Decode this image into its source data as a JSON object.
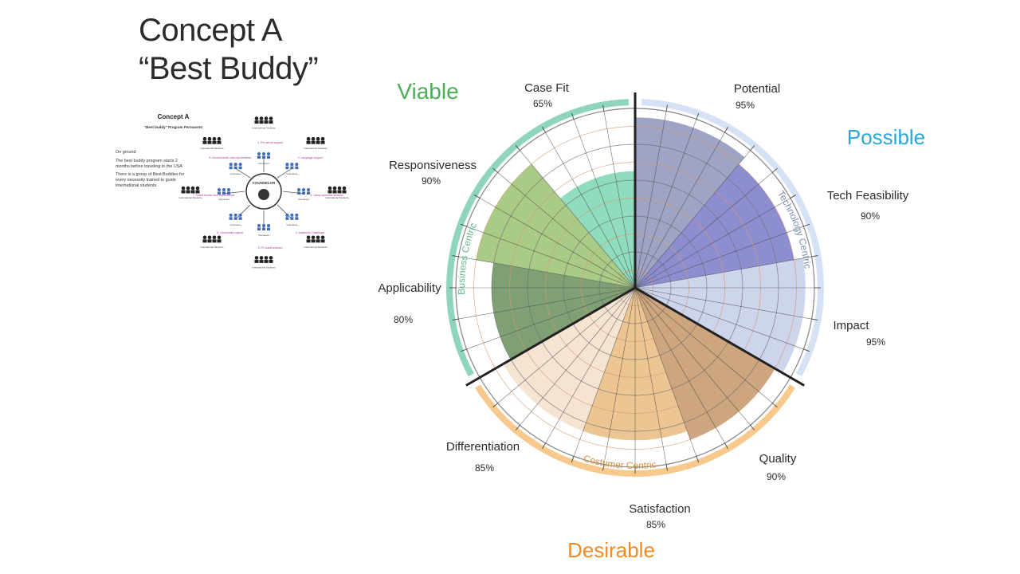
{
  "slide": {
    "title_line1": "Concept A",
    "title_line2": "“Best Buddy”"
  },
  "thumbnail": {
    "title": "Concept A",
    "subtitle": "\"Best buddy\" Program Permanent",
    "body": [
      "On ground",
      "The best buddy program starts 2 months before traveling to the USA",
      "There is a group of Best Buddies for every necessity trained to guide international students."
    ],
    "center_label": "COUNSELOR",
    "nodes": [
      {
        "group": "International Students",
        "step": "1. Pre-arrival support",
        "helper": "Volunteers"
      },
      {
        "group": "International Students",
        "step": "2. Language support",
        "helper": "Volunteers"
      },
      {
        "group": "International Students",
        "step": "3. Living expenses advisors",
        "helper": "Volunteers"
      },
      {
        "group": "International Students",
        "step": "4. Academic Challenges",
        "helper": "Volunteers"
      },
      {
        "group": "International Students",
        "step": "5. Fit social advisors",
        "helper": "Volunteers"
      },
      {
        "group": "International Students",
        "step": "6. Community support",
        "helper": "Volunteers"
      },
      {
        "group": "International Students",
        "step": "7. Social events/ visa requirements",
        "helper": "Volunteers"
      },
      {
        "group": "International Students",
        "step": "8. Social events/ visa requirements",
        "helper": "Volunteers"
      }
    ]
  },
  "colors": {
    "viable": "#4cae57",
    "possible": "#2aa8d8",
    "desirable": "#f08a24",
    "business_band": "#8fd5bb",
    "technology_band": "#d4e2f4",
    "customer_band": "#f8c98c"
  },
  "chart_data": {
    "type": "polar-area",
    "groups": [
      {
        "name": "Viable",
        "band_label": "Business Centric",
        "categories": [
          "Case Fit",
          "Responsiveness",
          "Applicability"
        ]
      },
      {
        "name": "Possible",
        "band_label": "Technology Centric",
        "categories": [
          "Potential",
          "Tech Feasibility",
          "Impact"
        ]
      },
      {
        "name": "Desirable",
        "band_label": "Costumer Centric",
        "categories": [
          "Quality",
          "Satisfaction",
          "Differentiation"
        ]
      }
    ],
    "categories": [
      "Potential",
      "Tech Feasibility",
      "Impact",
      "Quality",
      "Satisfaction",
      "Differentiation",
      "Applicability",
      "Responsiveness",
      "Case Fit"
    ],
    "values": [
      95,
      90,
      95,
      90,
      85,
      85,
      80,
      90,
      65
    ],
    "value_labels": [
      "95%",
      "90%",
      "95%",
      "90%",
      "85%",
      "85%",
      "80%",
      "90%",
      "65%"
    ],
    "segment_colors": [
      "#9fa3c4",
      "#8d8ed0",
      "#ccd5ec",
      "#cda57e",
      "#ecc593",
      "#f6e4d3",
      "#7fa074",
      "#a9cb86",
      "#8fdcbf"
    ],
    "rlim": [
      0,
      100
    ],
    "grid": true
  }
}
